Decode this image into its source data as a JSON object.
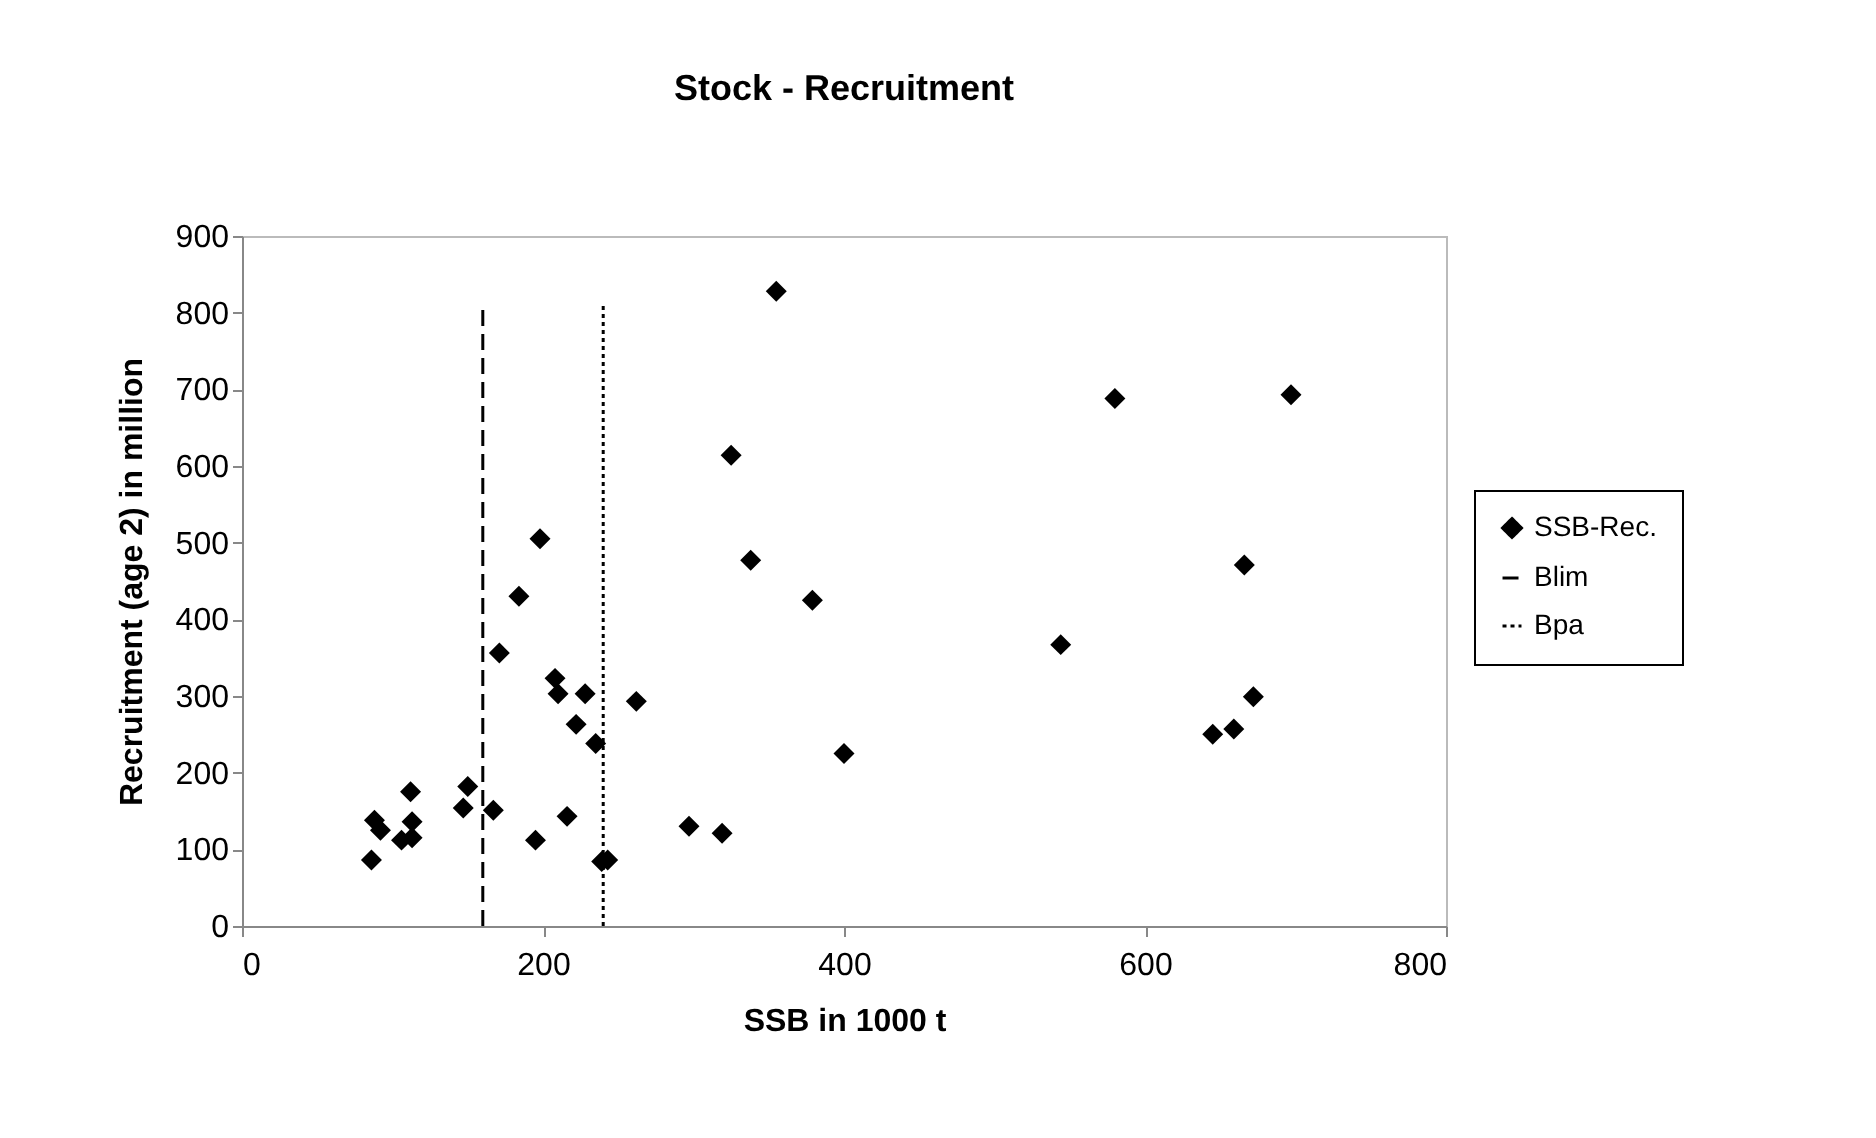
{
  "chart_data": {
    "type": "scatter",
    "title": "Stock - Recruitment",
    "xlabel": "SSB in 1000 t",
    "ylabel": "Recruitment (age 2) in million",
    "xlim": [
      0,
      800
    ],
    "xticks": [
      0,
      200,
      400,
      600,
      800
    ],
    "ylim": [
      0,
      900
    ],
    "yticks": [
      0,
      100,
      200,
      300,
      400,
      500,
      600,
      700,
      800,
      900
    ],
    "grid": false,
    "legend": "right",
    "series": [
      {
        "name": "SSB-Rec.",
        "marker": "diamond",
        "color": "#000000",
        "x": [
          86,
          88,
          92,
          106,
          112,
          113,
          113,
          147,
          150,
          167,
          171,
          184,
          195,
          198,
          208,
          210,
          216,
          222,
          228,
          235,
          239,
          243,
          262,
          297,
          319,
          325,
          338,
          355,
          379,
          400,
          544,
          580,
          645,
          659,
          666,
          672,
          697
        ],
        "values": [
          86,
          138,
          125,
          112,
          175,
          136,
          115,
          154,
          182,
          151,
          356,
          430,
          112,
          505,
          323,
          303,
          143,
          263,
          303,
          238,
          84,
          86,
          293,
          130,
          121,
          614,
          477,
          828,
          425,
          225,
          367,
          688,
          250,
          257,
          471,
          299,
          693
        ]
      },
      {
        "name": "Blim",
        "type": "line",
        "color": "#000000",
        "marker": "none",
        "line_style": "dashed",
        "x": [
          160,
          160
        ],
        "values": [
          0,
          810
        ]
      },
      {
        "name": "Bpa",
        "type": "line",
        "color": "#000000",
        "marker": "none",
        "line_style": "dotted",
        "x": [
          240,
          240
        ],
        "values": [
          0,
          810
        ]
      }
    ]
  }
}
